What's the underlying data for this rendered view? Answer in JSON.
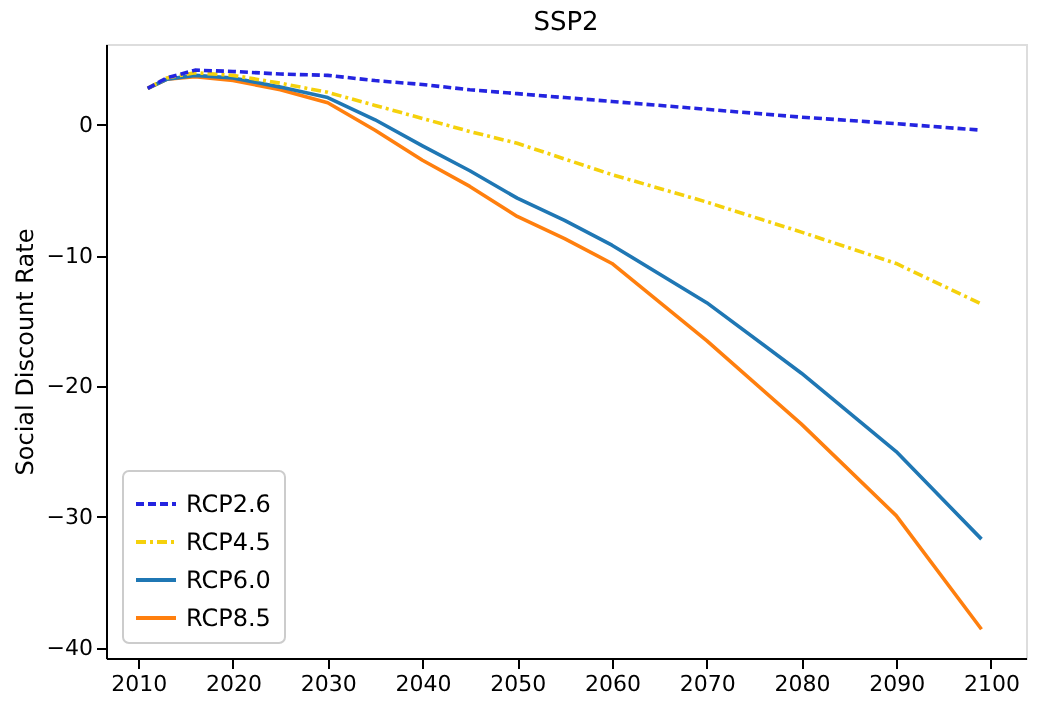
{
  "chart_data": {
    "type": "line",
    "title": "SSP2",
    "ylabel": "Social Discount Rate",
    "x": [
      2011,
      2013,
      2016,
      2020,
      2025,
      2030,
      2035,
      2040,
      2045,
      2050,
      2055,
      2060,
      2070,
      2080,
      2090,
      2099
    ],
    "series": [
      {
        "name": "RCP2.6",
        "color": "#2424e0",
        "line_style": "dashed",
        "values": [
          2.8,
          3.6,
          4.2,
          4.1,
          3.9,
          3.8,
          3.4,
          3.1,
          2.7,
          2.4,
          2.1,
          1.8,
          1.2,
          0.6,
          0.1,
          -0.4
        ]
      },
      {
        "name": "RCP4.5",
        "color": "#f5d10c",
        "line_style": "dashdot",
        "values": [
          2.8,
          3.6,
          4.0,
          3.8,
          3.2,
          2.5,
          1.5,
          0.5,
          -0.5,
          -1.4,
          -2.6,
          -3.8,
          -5.9,
          -8.2,
          -10.6,
          -13.7
        ]
      },
      {
        "name": "RCP6.0",
        "color": "#1f77b4",
        "line_style": "solid",
        "values": [
          2.8,
          3.5,
          3.8,
          3.6,
          2.9,
          2.1,
          0.4,
          -1.6,
          -3.5,
          -5.6,
          -7.3,
          -9.2,
          -13.6,
          -19.0,
          -25.0,
          -31.7
        ]
      },
      {
        "name": "RCP8.5",
        "color": "#ff7f0e",
        "line_style": "solid",
        "values": [
          2.8,
          3.5,
          3.7,
          3.4,
          2.7,
          1.7,
          -0.4,
          -2.7,
          -4.7,
          -7.0,
          -8.7,
          -10.6,
          -16.5,
          -22.9,
          -29.9,
          -38.6
        ]
      }
    ],
    "xlim": [
      2006.6,
      2103.7
    ],
    "ylim": [
      -40.8,
      6.2
    ],
    "xticks": [
      2010,
      2020,
      2030,
      2040,
      2050,
      2060,
      2070,
      2080,
      2090,
      2100
    ],
    "yticks": [
      -40,
      -30,
      -20,
      -10,
      0
    ],
    "grid": false,
    "legend": "bottom left"
  }
}
